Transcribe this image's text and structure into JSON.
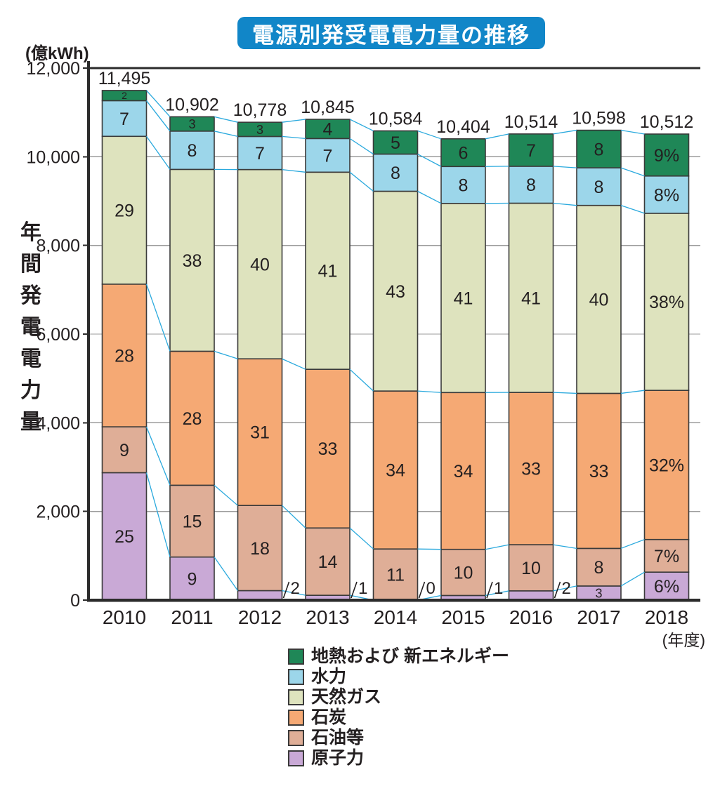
{
  "title": "電源別発受電電力量の推移",
  "title_bg": "#1186c8",
  "y_unit": "(億kWh)",
  "y_axis_label": "年間発電電力量",
  "x_unit": "(年度)",
  "chart_data": {
    "type": "bar",
    "stacked": true,
    "value_unit": "percent-share",
    "grid": true,
    "legend_position": "bottom",
    "connector_color": "#2aa9dd",
    "categories": [
      "2010",
      "2011",
      "2012",
      "2013",
      "2014",
      "2015",
      "2016",
      "2017",
      "2018"
    ],
    "totals": [
      11495,
      10902,
      10778,
      10845,
      10584,
      10404,
      10514,
      10598,
      10512
    ],
    "total_labels": [
      "11,495",
      "10,902",
      "10,778",
      "10,845",
      "10,584",
      "10,404",
      "10,514",
      "10,598",
      "10,512"
    ],
    "ylim": [
      0,
      12000
    ],
    "y_ticks": [
      {
        "value": 0,
        "label": "0"
      },
      {
        "value": 2000,
        "label": "2,000"
      },
      {
        "value": 4000,
        "label": "4,000"
      },
      {
        "value": 6000,
        "label": "6,000"
      },
      {
        "value": 8000,
        "label": "8,000"
      },
      {
        "value": 10000,
        "label": "10,000"
      },
      {
        "value": 12000,
        "label": "12,000"
      }
    ],
    "series": [
      {
        "name": "原子力",
        "color": "#c9a9d6",
        "values": [
          25,
          9,
          2,
          1,
          0,
          1,
          2,
          3,
          6
        ],
        "labels": [
          "25",
          "9",
          "2",
          "1",
          "0",
          "1",
          "2",
          "3",
          "6%"
        ],
        "label_outside": [
          false,
          false,
          true,
          true,
          true,
          true,
          true,
          false,
          false
        ]
      },
      {
        "name": "石油等",
        "color": "#dfae97",
        "values": [
          9,
          15,
          18,
          14,
          11,
          10,
          10,
          8,
          7
        ],
        "labels": [
          "9",
          "15",
          "18",
          "14",
          "11",
          "10",
          "10",
          "8",
          "7%"
        ],
        "label_outside": [
          false,
          false,
          false,
          false,
          false,
          false,
          false,
          false,
          false
        ]
      },
      {
        "name": "石炭",
        "color": "#f5a974",
        "values": [
          28,
          28,
          31,
          33,
          34,
          34,
          33,
          33,
          32
        ],
        "labels": [
          "28",
          "28",
          "31",
          "33",
          "34",
          "34",
          "33",
          "33",
          "32%"
        ],
        "label_outside": [
          false,
          false,
          false,
          false,
          false,
          false,
          false,
          false,
          false
        ]
      },
      {
        "name": "天然ガス",
        "color": "#dee3be",
        "values": [
          29,
          38,
          40,
          41,
          43,
          41,
          41,
          40,
          38
        ],
        "labels": [
          "29",
          "38",
          "40",
          "41",
          "43",
          "41",
          "41",
          "40",
          "38%"
        ],
        "label_outside": [
          false,
          false,
          false,
          false,
          false,
          false,
          false,
          false,
          false
        ]
      },
      {
        "name": "水力",
        "color": "#9cd6ea",
        "values": [
          7,
          8,
          7,
          7,
          8,
          8,
          8,
          8,
          8
        ],
        "labels": [
          "7",
          "8",
          "7",
          "7",
          "8",
          "8",
          "8",
          "8",
          "8%"
        ],
        "label_outside": [
          false,
          false,
          false,
          false,
          false,
          false,
          false,
          false,
          false
        ]
      },
      {
        "name": "地熱および 新エネルギー",
        "color": "#1f8757",
        "values": [
          2,
          3,
          3,
          4,
          5,
          6,
          7,
          8,
          9
        ],
        "labels": [
          "2",
          "3",
          "3",
          "4",
          "5",
          "6",
          "7",
          "8",
          "9%"
        ],
        "label_outside": [
          false,
          false,
          false,
          false,
          false,
          false,
          false,
          false,
          false
        ]
      }
    ]
  }
}
